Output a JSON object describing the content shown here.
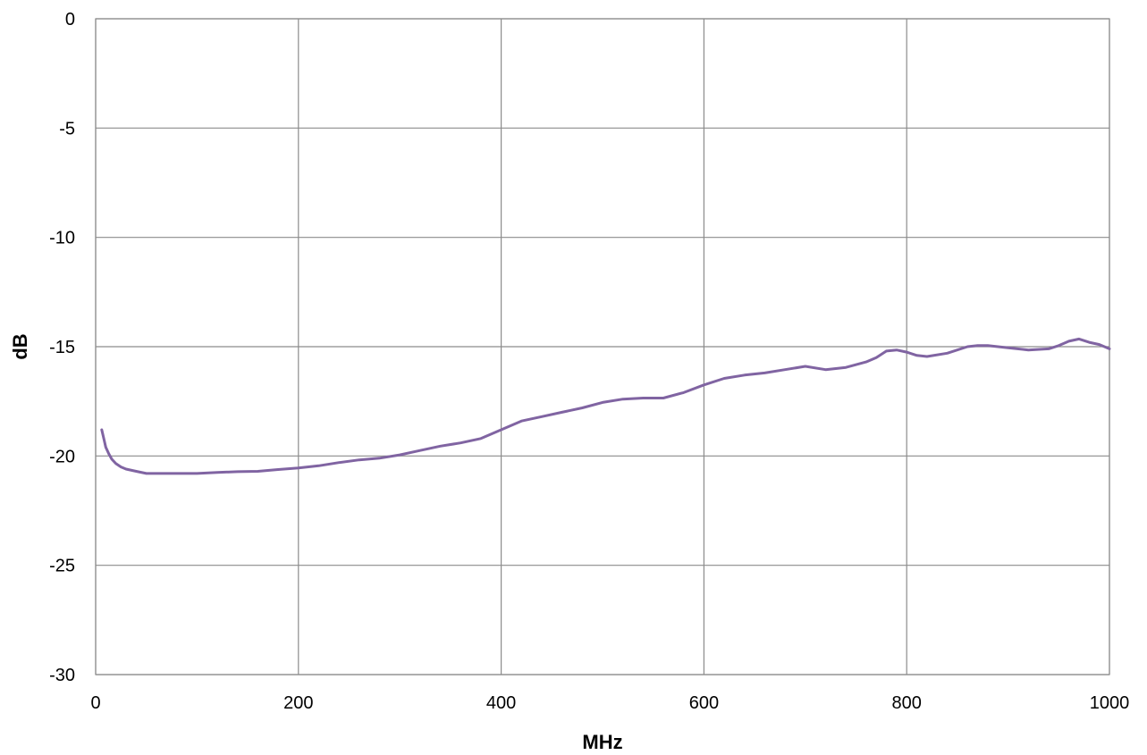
{
  "chart_data": {
    "type": "line",
    "title": "",
    "xlabel": "MHz",
    "ylabel": "dB",
    "xlim": [
      0,
      1000
    ],
    "ylim": [
      -30,
      0
    ],
    "x_ticks": [
      0,
      200,
      400,
      600,
      800,
      1000
    ],
    "y_ticks": [
      0,
      -5,
      -10,
      -15,
      -20,
      -25,
      -30
    ],
    "grid": true,
    "legend": "none",
    "series": [
      {
        "color": "#8064a2",
        "x": [
          6,
          8,
          10,
          13,
          16,
          20,
          25,
          30,
          40,
          50,
          60,
          80,
          100,
          120,
          140,
          160,
          180,
          200,
          220,
          240,
          260,
          280,
          300,
          320,
          340,
          360,
          380,
          400,
          420,
          440,
          460,
          480,
          500,
          520,
          540,
          560,
          580,
          600,
          620,
          640,
          660,
          680,
          700,
          720,
          740,
          760,
          770,
          780,
          790,
          800,
          810,
          820,
          840,
          860,
          870,
          880,
          900,
          920,
          940,
          950,
          960,
          970,
          980,
          990,
          1000
        ],
        "values": [
          -18.8,
          -19.2,
          -19.6,
          -19.9,
          -20.15,
          -20.35,
          -20.5,
          -20.6,
          -20.7,
          -20.8,
          -20.8,
          -20.8,
          -20.8,
          -20.75,
          -20.72,
          -20.7,
          -20.62,
          -20.55,
          -20.45,
          -20.3,
          -20.18,
          -20.1,
          -19.95,
          -19.75,
          -19.55,
          -19.4,
          -19.2,
          -18.8,
          -18.4,
          -18.2,
          -18.0,
          -17.8,
          -17.55,
          -17.4,
          -17.35,
          -17.35,
          -17.1,
          -16.75,
          -16.45,
          -16.3,
          -16.2,
          -16.05,
          -15.9,
          -16.05,
          -15.95,
          -15.7,
          -15.5,
          -15.2,
          -15.15,
          -15.25,
          -15.4,
          -15.45,
          -15.3,
          -15.0,
          -14.95,
          -14.95,
          -15.05,
          -15.15,
          -15.1,
          -14.95,
          -14.75,
          -14.65,
          -14.8,
          -14.9,
          -15.1
        ]
      }
    ]
  }
}
